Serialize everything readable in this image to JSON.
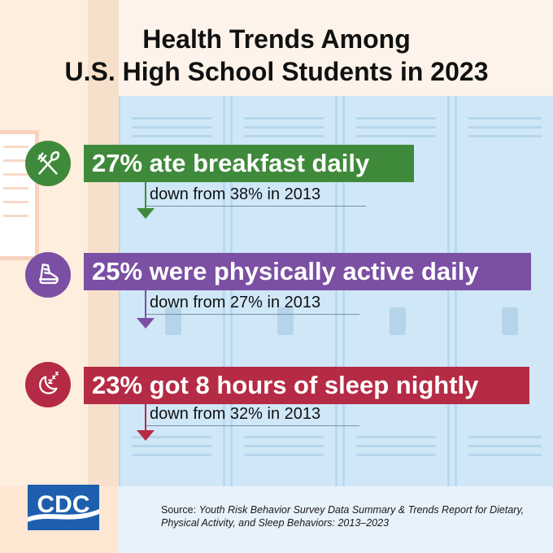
{
  "title": {
    "line1": "Health Trends Among",
    "line2": "U.S. High School Students in 2023"
  },
  "stats": [
    {
      "icon": "fork-knife-icon",
      "color": "#3f8a3a",
      "headline": "27% ate breakfast daily",
      "change": "down from 38% in 2013"
    },
    {
      "icon": "sneaker-icon",
      "color": "#7b4fa3",
      "headline": "25% were physically active daily",
      "change": "down from 27% in 2013"
    },
    {
      "icon": "moon-sleep-icon",
      "color": "#b52b45",
      "headline": "23% got 8 hours of sleep nightly",
      "change": "down from 32% in 2013"
    }
  ],
  "logo": {
    "text": "CDC",
    "color": "#1d5fae"
  },
  "source": {
    "prefix": "Source: ",
    "title": "Youth Risk Behavior Survey Data Summary & Trends Report for Dietary, Physical Activity, and Sleep Behaviors: 2013–2023"
  }
}
